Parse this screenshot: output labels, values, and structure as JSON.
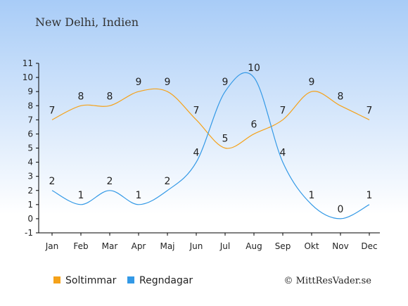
{
  "chart_data": {
    "type": "line",
    "title": "New Delhi, Indien",
    "categories": [
      "Jan",
      "Feb",
      "Mar",
      "Apr",
      "Maj",
      "Jun",
      "Jul",
      "Aug",
      "Sep",
      "Okt",
      "Nov",
      "Dec"
    ],
    "series": [
      {
        "name": "Soltimmar",
        "color": "#f5a21a",
        "values": [
          7,
          8,
          8,
          9,
          9,
          7,
          5,
          6,
          7,
          9,
          8,
          7
        ]
      },
      {
        "name": "Regndagar",
        "color": "#3399e6",
        "values": [
          2,
          1,
          2,
          1,
          2,
          4,
          9,
          10,
          4,
          1,
          0,
          1
        ]
      }
    ],
    "yticks": [
      "-1",
      "0",
      "1",
      "2",
      "3",
      "4",
      "5",
      "6",
      "7",
      "8",
      "9",
      "10",
      "11"
    ],
    "ylim": [
      -1,
      11
    ],
    "grid": false,
    "legend_position": "bottom-left"
  },
  "credit": "© MittResVader.se",
  "colors": {
    "background_top": "#a8ccf7",
    "background_bottom": "#ffffff"
  }
}
